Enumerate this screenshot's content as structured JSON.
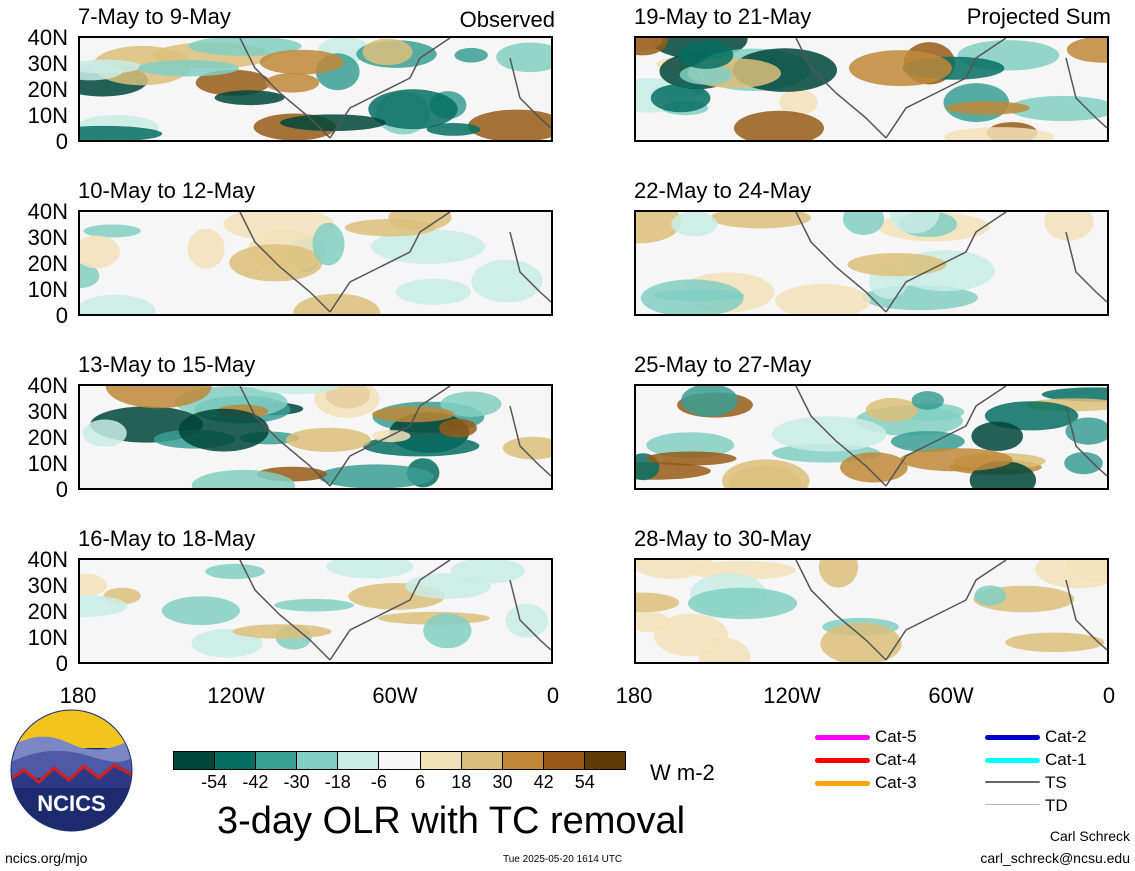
{
  "panels": {
    "observed": [
      {
        "title": "7-May to 9-May"
      },
      {
        "title": "10-May to 12-May"
      },
      {
        "title": "13-May to 15-May"
      },
      {
        "title": "16-May to 18-May"
      }
    ],
    "projected": [
      {
        "title": "19-May to 21-May"
      },
      {
        "title": "22-May to 24-May"
      },
      {
        "title": "25-May to 27-May"
      },
      {
        "title": "28-May to 30-May"
      }
    ]
  },
  "tags": {
    "observed": "Observed",
    "projected": "Projected Sum"
  },
  "lat_labels": [
    "40N",
    "30N",
    "20N",
    "10N",
    "0"
  ],
  "lon_labels": [
    "180",
    "120W",
    "60W",
    "0"
  ],
  "colorbar": {
    "colors": [
      "#00453a",
      "#066e62",
      "#3a9f94",
      "#81cfc3",
      "#c9ece5",
      "#f6f6f6",
      "#f2e2b8",
      "#dcbf7a",
      "#c08838",
      "#965a16",
      "#5e3a08"
    ],
    "labels": [
      "-54",
      "-42",
      "-30",
      "-18",
      "-6",
      "6",
      "18",
      "30",
      "42",
      "54"
    ],
    "units": "W m-2"
  },
  "legend": [
    {
      "label": "Cat-5",
      "color": "#ff00ff"
    },
    {
      "label": "Cat-4",
      "color": "#ff0000"
    },
    {
      "label": "Cat-3",
      "color": "#ffa500"
    },
    {
      "label": "Cat-2",
      "color": "#0000cc"
    },
    {
      "label": "Cat-1",
      "color": "#00ffff"
    },
    {
      "label": "TS",
      "color": "#666666"
    },
    {
      "label": "TD",
      "color": "#bbbbbb"
    }
  ],
  "main_title": "3-day OLR with TC removal",
  "logo_text": "NCICS",
  "footer": {
    "url": "ncics.org/mjo",
    "timestamp": "Tue 2025-05-20 1614 UTC",
    "author": "Carl Schreck",
    "email": "carl_schreck@ncsu.edu"
  }
}
